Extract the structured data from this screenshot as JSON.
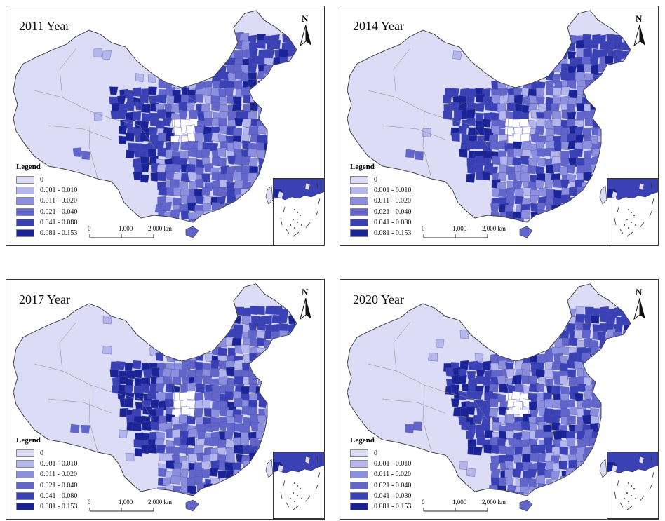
{
  "panels": [
    {
      "title": "2011 Year",
      "variant": 0
    },
    {
      "title": "2014 Year",
      "variant": 1
    },
    {
      "title": "2017 Year",
      "variant": 2
    },
    {
      "title": "2020 Year",
      "variant": 3
    }
  ],
  "north_label": "N",
  "legend": {
    "title": "Legend",
    "items": [
      {
        "label": "0",
        "color": "#dcdcf7"
      },
      {
        "label": "0.001 - 0.010",
        "color": "#b5b7ec"
      },
      {
        "label": "0.011 - 0.020",
        "color": "#8c8fdd"
      },
      {
        "label": "0.021 - 0.040",
        "color": "#6266cb"
      },
      {
        "label": "0.041 - 0.080",
        "color": "#3a41b4"
      },
      {
        "label": "0.081 - 0.153",
        "color": "#1a2496"
      }
    ]
  },
  "scale": {
    "labels": [
      "0",
      "1,000",
      "2,000 km"
    ]
  }
}
